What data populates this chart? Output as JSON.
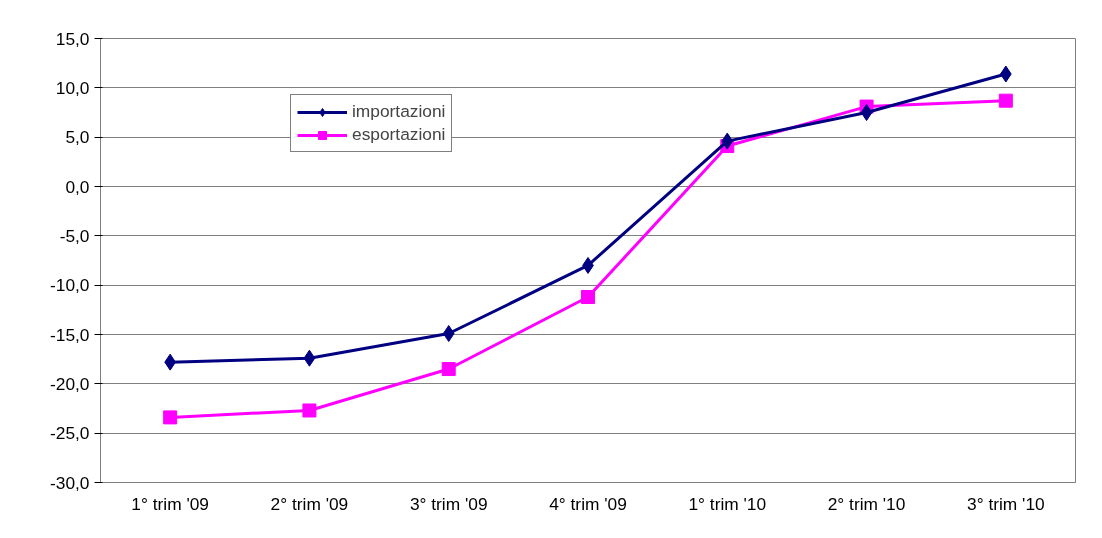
{
  "chart_data": {
    "type": "line",
    "categories": [
      "1° trim '09",
      "2° trim '09",
      "3° trim '09",
      "4° trim '09",
      "1° trim '10",
      "2° trim '10",
      "3° trim '10"
    ],
    "series": [
      {
        "name": "importazioni",
        "color": "#000080",
        "marker": "diamond",
        "values": [
          -17.8,
          -17.4,
          -14.9,
          -8.0,
          4.6,
          7.5,
          11.4
        ]
      },
      {
        "name": "esportazioni",
        "color": "#ff00ff",
        "marker": "square",
        "values": [
          -23.4,
          -22.7,
          -18.5,
          -11.2,
          4.1,
          8.1,
          8.7
        ]
      }
    ],
    "ylim": [
      -30,
      15
    ],
    "yticks": [
      {
        "value": -30,
        "label": "-30,0"
      },
      {
        "value": -25,
        "label": "-25,0"
      },
      {
        "value": -20,
        "label": "-20,0"
      },
      {
        "value": -15,
        "label": "-15,0"
      },
      {
        "value": -10,
        "label": "-10,0"
      },
      {
        "value": -5,
        "label": "-5,0"
      },
      {
        "value": 0,
        "label": "0,0"
      },
      {
        "value": 5,
        "label": "5,0"
      },
      {
        "value": 10,
        "label": "10,0"
      },
      {
        "value": 15,
        "label": "15,0"
      }
    ],
    "grid": "y",
    "legend": "top left",
    "line_style": "solid"
  }
}
